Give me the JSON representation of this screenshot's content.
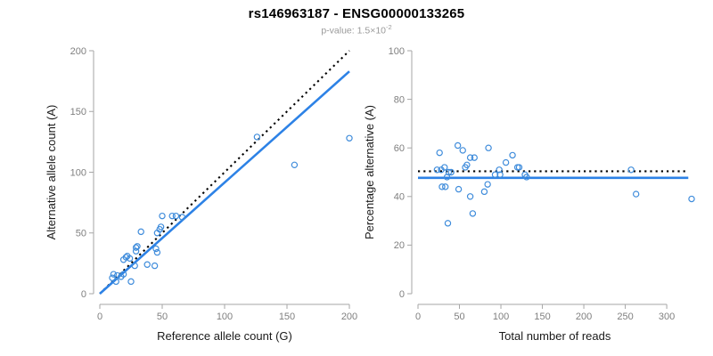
{
  "header": {
    "title": "rs146963187 - ENSG00000133265",
    "subtitle_label": "p-value:",
    "subtitle_value": "1.5×10",
    "subtitle_exponent": "-2"
  },
  "colors": {
    "point_blue": "#3f8cdb",
    "line_blue": "#2d82e6",
    "identity_black": "#000000",
    "axis_gray": "#a6a6a6",
    "tick_label_gray": "#7f7f7f",
    "axis_title": "#1a1a1a"
  },
  "chart_data": [
    {
      "type": "scatter",
      "panel": "left",
      "xlabel": "Reference allele count (G)",
      "ylabel": "Alternative allele count (A)",
      "xlim": [
        0,
        200
      ],
      "ylim": [
        0,
        200
      ],
      "xticks": [
        0,
        50,
        100,
        150,
        200
      ],
      "yticks": [
        0,
        50,
        100,
        150,
        200
      ],
      "grid": false,
      "points": [
        [
          10,
          13
        ],
        [
          11,
          16
        ],
        [
          13,
          10
        ],
        [
          14,
          15
        ],
        [
          17,
          14
        ],
        [
          19,
          16
        ],
        [
          25,
          10
        ],
        [
          19,
          28
        ],
        [
          21,
          30
        ],
        [
          22,
          31
        ],
        [
          24,
          29
        ],
        [
          28,
          23
        ],
        [
          29,
          35
        ],
        [
          29,
          38
        ],
        [
          30,
          39
        ],
        [
          33,
          51
        ],
        [
          38,
          24
        ],
        [
          44,
          23
        ],
        [
          45,
          37
        ],
        [
          46,
          34
        ],
        [
          46,
          50
        ],
        [
          48,
          53
        ],
        [
          49,
          55
        ],
        [
          50,
          64
        ],
        [
          58,
          64
        ],
        [
          61,
          64
        ],
        [
          66,
          63
        ],
        [
          126,
          129
        ],
        [
          156,
          106
        ],
        [
          200,
          128
        ]
      ],
      "lines": [
        {
          "name": "identity-line",
          "style": "dotted",
          "color": "black",
          "x1": 0,
          "y1": 0,
          "x2": 200,
          "y2": 200
        },
        {
          "name": "regression-line",
          "style": "solid",
          "color": "blue",
          "x1": 0,
          "y1": 0,
          "x2": 200,
          "y2": 183
        }
      ]
    },
    {
      "type": "scatter",
      "panel": "right",
      "xlabel": "Total number of reads",
      "ylabel": "Percentage alternative (A)",
      "xlim": [
        0,
        330
      ],
      "ylim": [
        0,
        100
      ],
      "xticks": [
        0,
        50,
        100,
        150,
        200,
        250,
        300
      ],
      "yticks": [
        0,
        20,
        40,
        60,
        80,
        100
      ],
      "grid": false,
      "points": [
        [
          23,
          51
        ],
        [
          26,
          58
        ],
        [
          28,
          51
        ],
        [
          29,
          44
        ],
        [
          32,
          52
        ],
        [
          33,
          44
        ],
        [
          35,
          48
        ],
        [
          36,
          29
        ],
        [
          37,
          50
        ],
        [
          40,
          50
        ],
        [
          48,
          61
        ],
        [
          49,
          43
        ],
        [
          54,
          59
        ],
        [
          57,
          52
        ],
        [
          59,
          53
        ],
        [
          63,
          56
        ],
        [
          63,
          40
        ],
        [
          66,
          33
        ],
        [
          68,
          56
        ],
        [
          80,
          42
        ],
        [
          84,
          45
        ],
        [
          85,
          60
        ],
        [
          93,
          49
        ],
        [
          98,
          51
        ],
        [
          99,
          49
        ],
        [
          106,
          54
        ],
        [
          114,
          57
        ],
        [
          120,
          52
        ],
        [
          122,
          52
        ],
        [
          129,
          49
        ],
        [
          131,
          48
        ],
        [
          257,
          51
        ],
        [
          263,
          41
        ],
        [
          330,
          39
        ]
      ],
      "lines": [
        {
          "name": "null-line",
          "style": "dotted",
          "color": "black",
          "x1": 0,
          "y1": 50.4,
          "x2": 323,
          "y2": 50.4
        },
        {
          "name": "mean-line",
          "style": "solid",
          "color": "blue",
          "x1": 0,
          "y1": 47.7,
          "x2": 326,
          "y2": 47.7
        }
      ]
    }
  ]
}
